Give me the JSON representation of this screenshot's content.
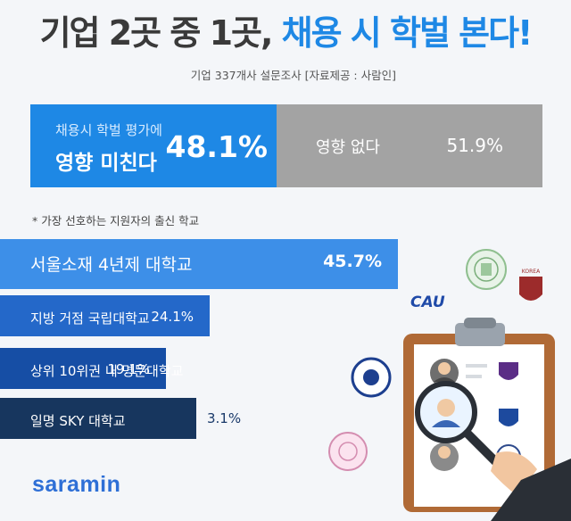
{
  "title": {
    "part1": "기업 2곳 중 1곳,",
    "part2": "채용 시 학벌 본다!"
  },
  "subtitle": "기업 337개사 설문조사 [자료제공 : 사람인]",
  "split": {
    "left_small": "채용시 학벌 평가에",
    "left_big": "영향 미친다",
    "left_value": "48.1%",
    "right_label": "영향 없다",
    "right_value": "51.9%"
  },
  "note": "* 가장 선호하는 지원자의 출신 학교",
  "brand": "saramin",
  "illustration": {
    "badge_text": "CAU",
    "crest_text": "KOREA"
  },
  "colors": {
    "blue": "#1e88e5",
    "gray": "#a3a3a3",
    "bar1": "#3d8fe8",
    "bar2": "#2468c9",
    "bar3": "#164ea5",
    "bar4": "#17365e"
  },
  "chart_data": [
    {
      "type": "bar",
      "title": "",
      "categories": [
        "채용시 학벌 평가에 영향 미친다",
        "영향 없다"
      ],
      "values": [
        48.1,
        51.9
      ],
      "value_labels": [
        "48.1%",
        "51.9%"
      ]
    },
    {
      "type": "bar",
      "orientation": "horizontal",
      "title": "* 가장 선호하는 지원자의 출신 학교",
      "categories": [
        "서울소재 4년제 대학교",
        "지방 거점 국립대학교",
        "상위 10위권 내 명문대학교",
        "일명 SKY 대학교"
      ],
      "values": [
        45.7,
        24.1,
        19.1,
        3.1
      ],
      "value_labels": [
        "45.7%",
        "24.1%",
        "19.1%",
        "3.1%"
      ]
    }
  ]
}
